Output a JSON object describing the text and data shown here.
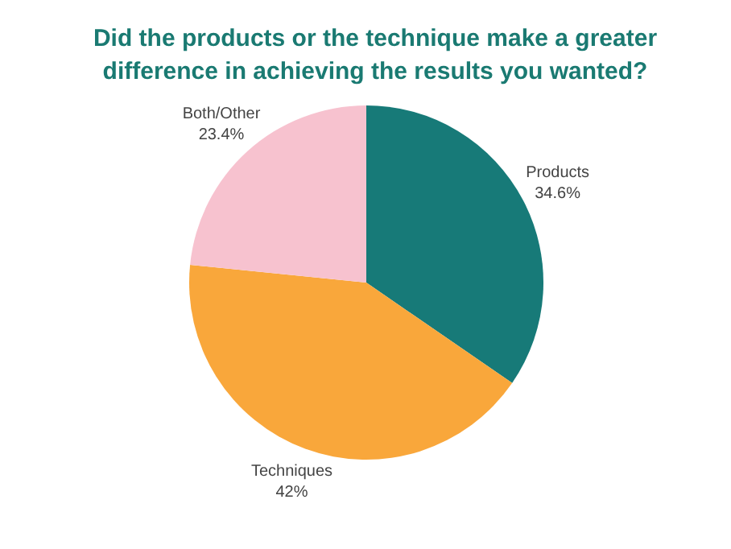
{
  "chart_data": {
    "type": "pie",
    "title": "Did the products or the technique make a greater difference in achieving the results you wanted?",
    "categories": [
      "Products",
      "Techniques",
      "Both/Other"
    ],
    "values": [
      34.6,
      42,
      23.4
    ],
    "value_labels": [
      "34.6%",
      "42%",
      "23.4%"
    ],
    "colors": [
      "#177a78",
      "#f9a73b",
      "#f7c2cf"
    ]
  }
}
